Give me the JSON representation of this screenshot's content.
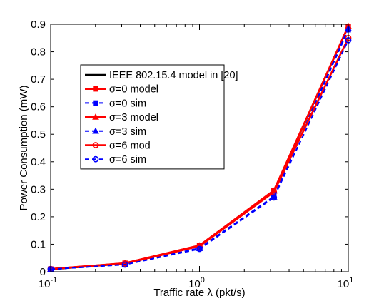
{
  "chart_data": {
    "type": "line",
    "title": "",
    "xlabel": "Traffic rate λ (pkt/s)",
    "ylabel": "Power Consumption (mW)",
    "xscale": "log",
    "xlim": [
      0.1,
      10
    ],
    "ylim": [
      0,
      0.9
    ],
    "grid": false,
    "legend_position": "upper-left inside plot",
    "x_ticks": [
      {
        "value": 0.1,
        "base": "10",
        "exp": "-1"
      },
      {
        "value": 1,
        "base": "10",
        "exp": "0"
      },
      {
        "value": 10,
        "base": "10",
        "exp": "1"
      }
    ],
    "y_ticks": [
      {
        "value": 0,
        "label": "0"
      },
      {
        "value": 0.1,
        "label": "0.1"
      },
      {
        "value": 0.2,
        "label": "0.2"
      },
      {
        "value": 0.3,
        "label": "0.3"
      },
      {
        "value": 0.4,
        "label": "0.4"
      },
      {
        "value": 0.5,
        "label": "0.5"
      },
      {
        "value": 0.6,
        "label": "0.6"
      },
      {
        "value": 0.7,
        "label": "0.7"
      },
      {
        "value": 0.8,
        "label": "0.8"
      },
      {
        "value": 0.9,
        "label": "0.9"
      }
    ],
    "x": [
      0.1,
      0.316,
      1.0,
      3.162,
      10.0
    ],
    "series": [
      {
        "name": "IEEE 802.15.4 model in [20]",
        "color": "#000000",
        "dash": "solid",
        "marker": "none",
        "values": [
          0.009,
          0.03,
          0.094,
          0.293,
          0.893
        ]
      },
      {
        "name": "σ=0 model",
        "color": "#ff0000",
        "dash": "solid",
        "marker": "square",
        "values": [
          0.01,
          0.031,
          0.096,
          0.296,
          0.893
        ]
      },
      {
        "name": "σ=0 sim",
        "color": "#0000ff",
        "dash": "dashed",
        "marker": "square",
        "values": [
          0.009,
          0.027,
          0.086,
          0.274,
          0.88
        ]
      },
      {
        "name": "σ=3 model",
        "color": "#ff0000",
        "dash": "solid",
        "marker": "triangle",
        "values": [
          0.01,
          0.031,
          0.095,
          0.294,
          0.893
        ]
      },
      {
        "name": "σ=3 sim",
        "color": "#0000ff",
        "dash": "dashed",
        "marker": "triangle",
        "values": [
          0.009,
          0.027,
          0.085,
          0.272,
          0.885
        ]
      },
      {
        "name": "σ=6 mod",
        "color": "#ff0000",
        "dash": "solid",
        "marker": "circle",
        "values": [
          0.01,
          0.03,
          0.093,
          0.29,
          0.85
        ]
      },
      {
        "name": "σ=6 sim",
        "color": "#0000ff",
        "dash": "dashed",
        "marker": "circle",
        "values": [
          0.009,
          0.026,
          0.083,
          0.27,
          0.842
        ]
      }
    ]
  }
}
